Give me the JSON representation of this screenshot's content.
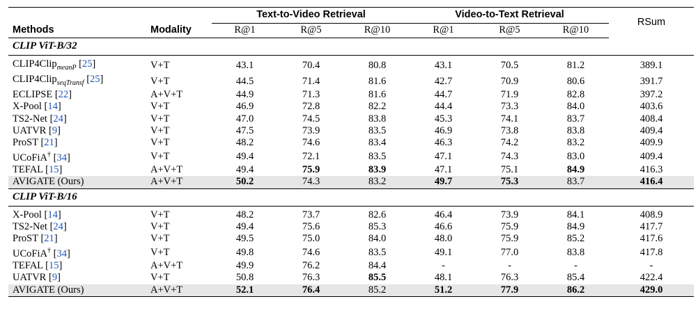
{
  "header": {
    "group_t2v": "Text-to-Video Retrieval",
    "group_v2t": "Video-to-Text Retrieval",
    "rsum": "RSum",
    "methods": "Methods",
    "modality": "Modality",
    "metrics": [
      "R@1",
      "R@5",
      "R@10",
      "R@1",
      "R@5",
      "R@10"
    ]
  },
  "sections": [
    {
      "title": "CLIP ViT-B/32",
      "rows": [
        {
          "name": "CLIP4Clip",
          "sub": "meanP",
          "cite": "25",
          "mod": "V+T",
          "v": [
            "43.1",
            "70.4",
            "80.8",
            "43.1",
            "70.5",
            "81.2",
            "389.1"
          ],
          "b": []
        },
        {
          "name": "CLIP4Clip",
          "sub": "seqTransf",
          "cite": "25",
          "mod": "V+T",
          "v": [
            "44.5",
            "71.4",
            "81.6",
            "42.7",
            "70.9",
            "80.6",
            "391.7"
          ],
          "b": []
        },
        {
          "name": "ECLIPSE",
          "cite": "22",
          "mod": "A+V+T",
          "v": [
            "44.9",
            "71.3",
            "81.6",
            "44.7",
            "71.9",
            "82.8",
            "397.2"
          ],
          "b": []
        },
        {
          "name": "X-Pool",
          "cite": "14",
          "mod": "V+T",
          "v": [
            "46.9",
            "72.8",
            "82.2",
            "44.4",
            "73.3",
            "84.0",
            "403.6"
          ],
          "b": []
        },
        {
          "name": "TS2-Net",
          "cite": "24",
          "mod": "V+T",
          "v": [
            "47.0",
            "74.5",
            "83.8",
            "45.3",
            "74.1",
            "83.7",
            "408.4"
          ],
          "b": []
        },
        {
          "name": "UATVR",
          "cite": "9",
          "mod": "V+T",
          "v": [
            "47.5",
            "73.9",
            "83.5",
            "46.9",
            "73.8",
            "83.8",
            "409.4"
          ],
          "b": []
        },
        {
          "name": "ProST",
          "cite": "21",
          "mod": "V+T",
          "v": [
            "48.2",
            "74.6",
            "83.4",
            "46.3",
            "74.2",
            "83.2",
            "409.9"
          ],
          "b": []
        },
        {
          "name": "UCoFiA",
          "dagger": "†",
          "cite": "34",
          "mod": "V+T",
          "v": [
            "49.4",
            "72.1",
            "83.5",
            "47.1",
            "74.3",
            "83.0",
            "409.4"
          ],
          "b": []
        },
        {
          "name": "TEFAL",
          "cite": "15",
          "mod": "A+V+T",
          "v": [
            "49.4",
            "75.9",
            "83.9",
            "47.1",
            "75.1",
            "84.9",
            "416.3"
          ],
          "b": [
            1,
            2,
            5
          ]
        },
        {
          "name": "AVIGATE (Ours)",
          "mod": "A+V+T",
          "v": [
            "50.2",
            "74.3",
            "83.2",
            "49.7",
            "75.3",
            "83.7",
            "416.4"
          ],
          "b": [
            0,
            3,
            4,
            6
          ],
          "hl": true
        }
      ]
    },
    {
      "title": "CLIP ViT-B/16",
      "rows": [
        {
          "name": "X-Pool",
          "cite": "14",
          "mod": "V+T",
          "v": [
            "48.2",
            "73.7",
            "82.6",
            "46.4",
            "73.9",
            "84.1",
            "408.9"
          ],
          "b": []
        },
        {
          "name": "TS2-Net",
          "cite": "24",
          "mod": "V+T",
          "v": [
            "49.4",
            "75.6",
            "85.3",
            "46.6",
            "75.9",
            "84.9",
            "417.7"
          ],
          "b": []
        },
        {
          "name": "ProST",
          "cite": "21",
          "mod": "V+T",
          "v": [
            "49.5",
            "75.0",
            "84.0",
            "48.0",
            "75.9",
            "85.2",
            "417.6"
          ],
          "b": []
        },
        {
          "name": "UCoFiA",
          "dagger": "†",
          "cite": "34",
          "mod": "V+T",
          "v": [
            "49.8",
            "74.6",
            "83.5",
            "49.1",
            "77.0",
            "83.8",
            "417.8"
          ],
          "b": []
        },
        {
          "name": "TEFAL",
          "cite": "15",
          "mod": "A+V+T",
          "v": [
            "49.9",
            "76.2",
            "84.4",
            "-",
            "-",
            "-",
            "-"
          ],
          "b": []
        },
        {
          "name": "UATVR",
          "cite": "9",
          "mod": "V+T",
          "v": [
            "50.8",
            "76.3",
            "85.5",
            "48.1",
            "76.3",
            "85.4",
            "422.4"
          ],
          "b": [
            2
          ]
        },
        {
          "name": "AVIGATE (Ours)",
          "mod": "A+V+T",
          "v": [
            "52.1",
            "76.4",
            "85.2",
            "51.2",
            "77.9",
            "86.2",
            "429.0"
          ],
          "b": [
            0,
            1,
            3,
            4,
            5,
            6
          ],
          "hl": true
        }
      ]
    }
  ]
}
